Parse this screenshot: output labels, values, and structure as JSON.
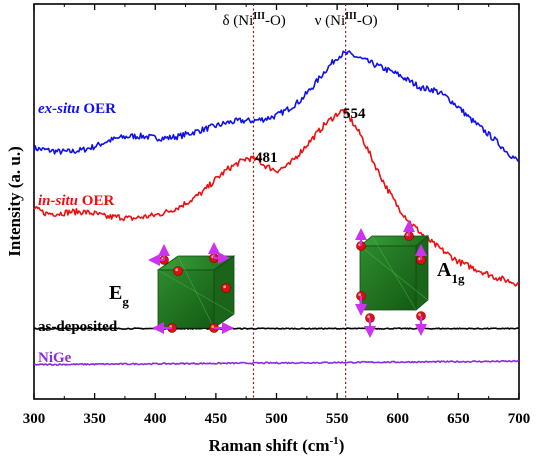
{
  "chart_data": {
    "type": "line",
    "xlabel": "Raman shift (cm",
    "xlabel_sup": "-1",
    "xlabel_close": ")",
    "ylabel": "Intensity (a. u.)",
    "xlim": [
      300,
      700
    ],
    "xticks": [
      300,
      350,
      400,
      450,
      500,
      550,
      600,
      650,
      700
    ],
    "grid": false,
    "y_ticks_shown": false,
    "vlines": [
      {
        "x": 481,
        "color": "#8b1a1a",
        "style": "dotted"
      },
      {
        "x": 557,
        "color": "#8b1a1a",
        "style": "dotted"
      }
    ],
    "band_labels": [
      {
        "prefix": "δ (Ni",
        "sup": "III",
        "suffix": "-O)",
        "x": 481
      },
      {
        "prefix": "ν (Ni",
        "sup": "III",
        "suffix": "-O)",
        "x": 557
      }
    ],
    "peak_labels": [
      {
        "text": "481",
        "x": 481,
        "series": "in-situ OER"
      },
      {
        "text": "554",
        "x": 554,
        "series": "ex-situ OER"
      }
    ],
    "mode_labels": [
      {
        "base": "E",
        "sub": "g",
        "near_x": 410
      },
      {
        "base": "A",
        "sub": "1g",
        "near_x": 660
      }
    ],
    "series": [
      {
        "name": "ex-situ OER",
        "label_italic": "ex-situ",
        "label_rest": " OER",
        "color": "#1010ee",
        "x": [
          300,
          310,
          320,
          330,
          340,
          350,
          360,
          370,
          380,
          390,
          400,
          410,
          420,
          430,
          440,
          450,
          460,
          470,
          480,
          490,
          500,
          510,
          520,
          530,
          540,
          550,
          555,
          560,
          570,
          580,
          590,
          600,
          610,
          620,
          630,
          640,
          650,
          660,
          670,
          680,
          690,
          700
        ],
        "y": [
          0.6,
          0.59,
          0.58,
          0.58,
          0.59,
          0.61,
          0.64,
          0.66,
          0.67,
          0.67,
          0.66,
          0.66,
          0.67,
          0.69,
          0.71,
          0.73,
          0.75,
          0.76,
          0.76,
          0.77,
          0.79,
          0.83,
          0.88,
          0.96,
          1.05,
          1.13,
          1.15,
          1.15,
          1.12,
          1.09,
          1.06,
          1.03,
          0.99,
          0.95,
          0.94,
          0.9,
          0.84,
          0.77,
          0.71,
          0.65,
          0.58,
          0.52
        ]
      },
      {
        "name": "in-situ OER",
        "label_italic": "in-situ",
        "label_rest": " OER",
        "color": "#ee1010",
        "x": [
          300,
          310,
          320,
          330,
          340,
          350,
          360,
          370,
          380,
          390,
          400,
          410,
          420,
          430,
          440,
          450,
          460,
          470,
          475,
          480,
          485,
          490,
          500,
          510,
          520,
          530,
          540,
          550,
          555,
          560,
          570,
          580,
          590,
          600,
          610,
          620,
          630,
          640,
          650,
          660,
          670,
          680,
          690,
          700
        ],
        "y": [
          0.25,
          0.22,
          0.22,
          0.23,
          0.23,
          0.22,
          0.2,
          0.2,
          0.19,
          0.2,
          0.21,
          0.23,
          0.26,
          0.3,
          0.35,
          0.42,
          0.48,
          0.52,
          0.54,
          0.54,
          0.53,
          0.5,
          0.47,
          0.5,
          0.58,
          0.66,
          0.74,
          0.8,
          0.82,
          0.78,
          0.67,
          0.52,
          0.38,
          0.26,
          0.17,
          0.1,
          0.04,
          -0.01,
          -0.06,
          -0.09,
          -0.12,
          -0.15,
          -0.17,
          -0.19
        ]
      },
      {
        "name": "as-deposited",
        "label_italic": "",
        "label_rest": "as-deposited",
        "color": "#000000",
        "x": [
          300,
          700
        ],
        "y": [
          -0.45,
          -0.45
        ]
      },
      {
        "name": "NiGe",
        "label_italic": "",
        "label_rest": "NiGe",
        "color": "#8a2be2",
        "x": [
          300,
          700
        ],
        "y": [
          -0.66,
          -0.64
        ]
      }
    ]
  }
}
